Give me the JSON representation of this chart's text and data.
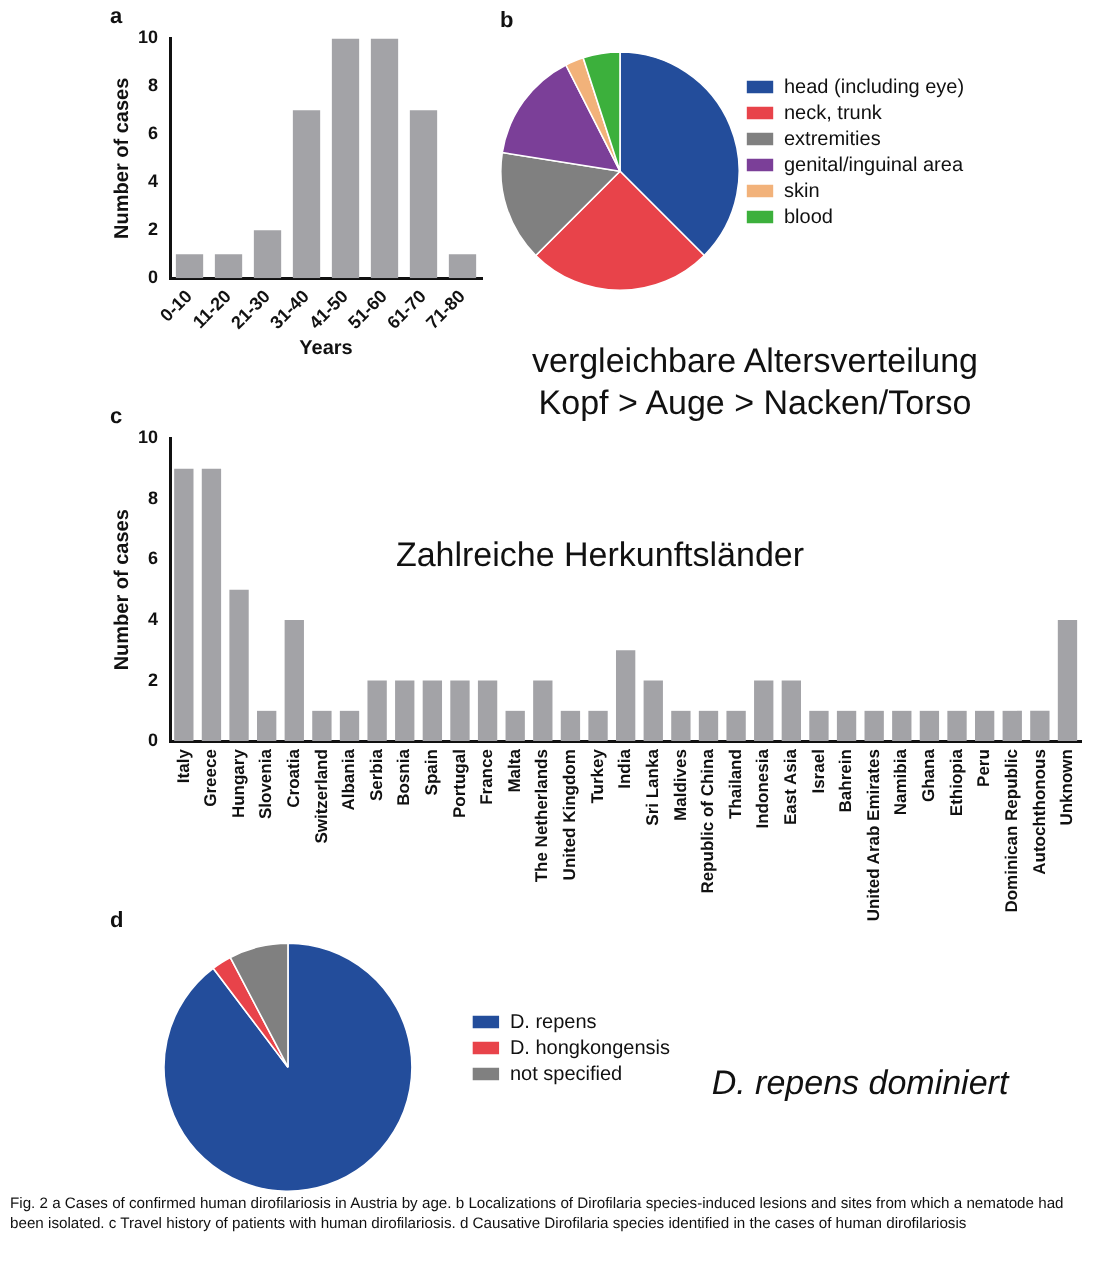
{
  "chart_data": [
    {
      "type": "bar",
      "title": "a",
      "xlabel": "Years",
      "ylabel": "Number of cases",
      "categories": [
        "0-10",
        "11-20",
        "21-30",
        "31-40",
        "41-50",
        "51-60",
        "61-70",
        "71-80"
      ],
      "values": [
        1,
        1,
        2,
        7,
        10,
        10,
        7,
        1
      ],
      "color": "#a3a3a7",
      "ylim": [
        0,
        10
      ],
      "yticks": [
        0,
        2,
        4,
        6,
        8,
        10
      ],
      "grid": false
    },
    {
      "type": "pie",
      "title": "b",
      "categories": [
        "head (including eye)",
        "neck, trunk",
        "extremities",
        "genital/inguinal area",
        "skin",
        "blood"
      ],
      "values": [
        37.5,
        25,
        15,
        15,
        2.5,
        5
      ],
      "colors": [
        "#234d9b",
        "#e8434a",
        "#808080",
        "#7b3f98",
        "#f2b27a",
        "#3cb03c"
      ],
      "legend": "right",
      "annotations": [
        "vergleichbare Altersverteilung",
        "Kopf > Auge > Nacken/Torso"
      ]
    },
    {
      "type": "bar",
      "title": "c",
      "ylabel": "Number of cases",
      "categories": [
        "Italy",
        "Greece",
        "Hungary",
        "Slovenia",
        "Croatia",
        "Switzerland",
        "Albania",
        "Serbia",
        "Bosnia",
        "Spain",
        "Portugal",
        "France",
        "Malta",
        "The Netherlands",
        "United Kingdom",
        "Turkey",
        "India",
        "Sri Lanka",
        "Maldives",
        "Republic of China",
        "Thailand",
        "Indonesia",
        "East Asia",
        "Israel",
        "Bahrein",
        "United Arab Emirates",
        "Namibia",
        "Ghana",
        "Ethiopia",
        "Peru",
        "Dominican Republic",
        "Autochthonous",
        "Unknown"
      ],
      "values": [
        9,
        9,
        5,
        1,
        4,
        1,
        1,
        2,
        2,
        2,
        2,
        2,
        1,
        2,
        1,
        1,
        3,
        2,
        1,
        1,
        1,
        2,
        2,
        1,
        1,
        1,
        1,
        1,
        1,
        1,
        1,
        1,
        4
      ],
      "color": "#a3a3a7",
      "ylim": [
        0,
        10
      ],
      "yticks": [
        0,
        2,
        4,
        6,
        8,
        10
      ],
      "grid": false,
      "annotations": [
        "Zahlreiche Herkunftsländer"
      ]
    },
    {
      "type": "pie",
      "title": "d",
      "categories": [
        "D. repens",
        "D. hongkongensis",
        "not specified"
      ],
      "values": [
        89.7,
        2.6,
        7.7
      ],
      "colors": [
        "#234d9b",
        "#e8434a",
        "#808080"
      ],
      "legend": "right",
      "annotations": [
        "D. repens dominiert",
        "Fig. 2 a Cases of confirmed human dirofilariosis in Austria by age. b Localizations of Dirofilaria species-induced lesions and sites from which a nematode had been isolated. c Travel history of patients with human dirofilariosis. d Causative Dirofilaria species identified in the cases of human dirofilariosis"
      ]
    }
  ]
}
